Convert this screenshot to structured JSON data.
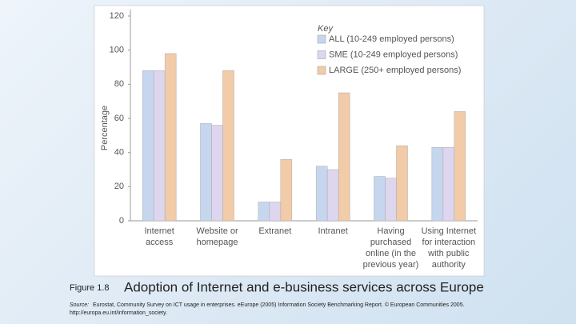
{
  "chart_data": {
    "type": "bar",
    "y_label": "Percentage",
    "legend_title": "Key",
    "legend_position": "upper right",
    "categories": [
      [
        "Internet",
        "access"
      ],
      [
        "Website or",
        "homepage"
      ],
      [
        "Extranet"
      ],
      [
        "Intranet"
      ],
      [
        "Having",
        "purchased",
        "online (in the",
        "previous year)"
      ],
      [
        "Using Internet",
        "for interaction",
        "with public",
        "authority"
      ]
    ],
    "series": [
      {
        "name": "ALL (10-249 employed persons)",
        "color": "#c6d6ef",
        "values": [
          88,
          57,
          11,
          32,
          26,
          43
        ]
      },
      {
        "name": "SME (10-249 employed persons)",
        "color": "#ddd6ee",
        "values": [
          88,
          56,
          11,
          30,
          25,
          43
        ]
      },
      {
        "name": "LARGE (250+ employed persons)",
        "color": "#f2cba8",
        "values": [
          98,
          88,
          36,
          75,
          44,
          64
        ]
      }
    ],
    "ylim": [
      0,
      120
    ],
    "yticks": [
      0,
      20,
      40,
      60,
      80,
      100,
      120
    ],
    "grid": false
  },
  "caption": {
    "figure_label": "Figure 1.8",
    "title": "Adoption of Internet and e-business services across Europe",
    "source_label": "Source:",
    "source_text": "Eurostat, Community Survey on ICT usage in enterprises. eEurope (2005) Information Society Benchmarking Report. © European Communities 2005.",
    "source_url": "http://europa.eu.int/information_society."
  }
}
